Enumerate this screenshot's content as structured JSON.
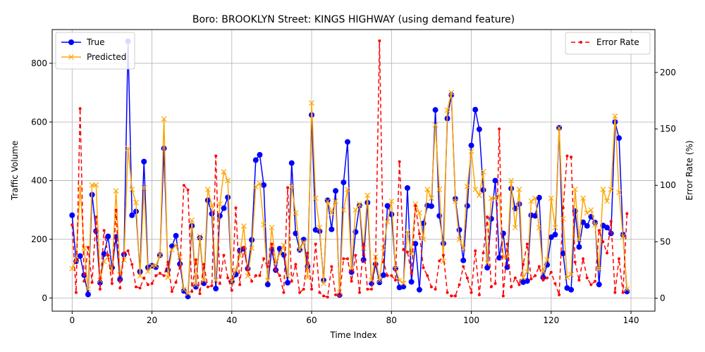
{
  "chart_data": {
    "type": "line",
    "title": "Boro: BROOKLYN Street: KINGS HIGHWAY (using demand feature)",
    "xlabel": "Time Index",
    "ylabel": "Traffic Volume",
    "y2label": "Error Rate (%)",
    "xlim": [
      -5,
      146
    ],
    "ylim": [
      -45,
      915
    ],
    "y2lim": [
      -11.5,
      238
    ],
    "xticks": [
      0,
      20,
      40,
      60,
      80,
      100,
      120,
      140
    ],
    "yticks": [
      0,
      200,
      400,
      600,
      800
    ],
    "y2ticks": [
      0,
      50,
      100,
      150,
      200
    ],
    "grid": true,
    "legend_left": "upper-left",
    "legend_right": "upper-right",
    "series": [
      {
        "name": "True",
        "color": "#0000ff",
        "marker": "circle",
        "axis": "left",
        "values": [
          282,
          125,
          143,
          78,
          12,
          352,
          228,
          52,
          150,
          210,
          103,
          208,
          63,
          148,
          875,
          282,
          295,
          90,
          465,
          104,
          110,
          105,
          146,
          510,
          96,
          176,
          212,
          116,
          24,
          5,
          246,
          38,
          205,
          50,
          333,
          287,
          32,
          280,
          306,
          343,
          56,
          80,
          162,
          168,
          100,
          198,
          470,
          488,
          385,
          46,
          165,
          95,
          168,
          147,
          52,
          460,
          220,
          164,
          199,
          108,
          624,
          232,
          228,
          60,
          333,
          234,
          365,
          10,
          394,
          532,
          88,
          225,
          315,
          130,
          325,
          50,
          115,
          53,
          78,
          314,
          285,
          100,
          36,
          39,
          375,
          55,
          185,
          28,
          254,
          315,
          313,
          641,
          280,
          186,
          612,
          692,
          338,
          232,
          128,
          314,
          520,
          642,
          575,
          368,
          103,
          270,
          400,
          137,
          220,
          105,
          373,
          305,
          320,
          54,
          58,
          282,
          280,
          342,
          70,
          113,
          207,
          216,
          580,
          152,
          34,
          28,
          296,
          174,
          258,
          246,
          277,
          257,
          46,
          247,
          240,
          220,
          600,
          545,
          216,
          22
        ]
      },
      {
        "name": "Predicted",
        "color": "#ffa500",
        "marker": "x",
        "axis": "left",
        "values": [
          100,
          130,
          380,
          170,
          30,
          385,
          385,
          60,
          125,
          140,
          90,
          365,
          80,
          130,
          510,
          370,
          325,
          75,
          375,
          90,
          110,
          110,
          145,
          610,
          70,
          165,
          180,
          140,
          30,
          15,
          265,
          45,
          210,
          60,
          370,
          315,
          60,
          320,
          430,
          400,
          55,
          95,
          145,
          245,
          75,
          170,
          380,
          390,
          250,
          60,
          240,
          120,
          150,
          180,
          75,
          380,
          290,
          165,
          190,
          70,
          665,
          340,
          240,
          50,
          330,
          290,
          330,
          20,
          300,
          370,
          100,
          300,
          320,
          170,
          350,
          60,
          140,
          60,
          170,
          260,
          330,
          100,
          60,
          50,
          225,
          150,
          320,
          290,
          200,
          370,
          340,
          590,
          370,
          125,
          640,
          700,
          330,
          200,
          170,
          380,
          500,
          370,
          350,
          430,
          120,
          340,
          340,
          350,
          140,
          140,
          400,
          240,
          370,
          70,
          90,
          330,
          340,
          240,
          90,
          130,
          340,
          240,
          580,
          270,
          70,
          80,
          370,
          200,
          340,
          290,
          300,
          250,
          100,
          370,
          330,
          370,
          620,
          360,
          210,
          30
        ]
      },
      {
        "name": "Error Rate",
        "color": "#ff0000",
        "marker": "dot",
        "axis": "right",
        "values": [
          65,
          5,
          168,
          15,
          45,
          14,
          72,
          8,
          60,
          38,
          13,
          78,
          9,
          40,
          42,
          30,
          10,
          9,
          18,
          12,
          13,
          20,
          22,
          20,
          32,
          6,
          14,
          28,
          100,
          96,
          6,
          34,
          4,
          30,
          10,
          11,
          126,
          13,
          38,
          18,
          7,
          80,
          12,
          45,
          25,
          15,
          20,
          20,
          35,
          28,
          48,
          25,
          20,
          5,
          98,
          15,
          30,
          5,
          8,
          40,
          8,
          48,
          5,
          2,
          1,
          28,
          3,
          2,
          35,
          35,
          15,
          38,
          5,
          48,
          8,
          8,
          30,
          228,
          32,
          20,
          20,
          16,
          121,
          43,
          41,
          22,
          82,
          57,
          27,
          20,
          10,
          8,
          33,
          38,
          5,
          2,
          2,
          12,
          28,
          18,
          5,
          42,
          3,
          40,
          72,
          10,
          13,
          150,
          2,
          48,
          10,
          18,
          12,
          30,
          48,
          17,
          20,
          28,
          16,
          18,
          23,
          13,
          3,
          80,
          126,
          125,
          32,
          16,
          35,
          18,
          12,
          15,
          60,
          50,
          40,
          68,
          5,
          35,
          5,
          75
        ]
      }
    ]
  }
}
